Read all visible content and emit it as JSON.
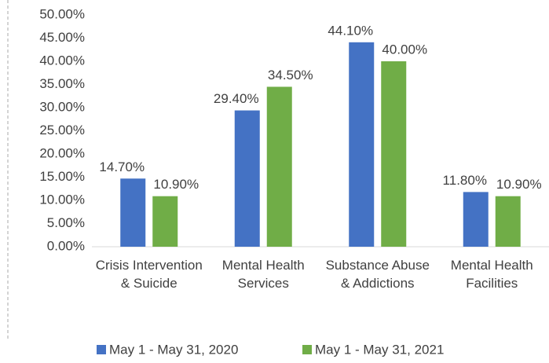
{
  "chart_data": {
    "type": "bar",
    "categories": [
      "Crisis Intervention & Suicide",
      "Mental Health Services",
      "Substance Abuse & Addictions",
      "Mental Health Facilities"
    ],
    "series": [
      {
        "name": "May 1 - May 31, 2020",
        "color": "#4472c4",
        "values": [
          14.7,
          29.4,
          44.1,
          11.8
        ],
        "value_labels": [
          "14.70%",
          "29.40%",
          "44.10%",
          "11.80%"
        ]
      },
      {
        "name": "May 1 - May 31, 2021",
        "color": "#70ad47",
        "values": [
          10.9,
          34.5,
          40.0,
          10.9
        ],
        "value_labels": [
          "10.90%",
          "34.50%",
          "40.00%",
          "10.90%"
        ]
      }
    ],
    "ylim": [
      0,
      50
    ],
    "yticks": [
      {
        "value": 0,
        "label": "0.00%"
      },
      {
        "value": 5,
        "label": "5.00%"
      },
      {
        "value": 10,
        "label": "10.00%"
      },
      {
        "value": 15,
        "label": "15.00%"
      },
      {
        "value": 20,
        "label": "20.00%"
      },
      {
        "value": 25,
        "label": "25.00%"
      },
      {
        "value": 30,
        "label": "30.00%"
      },
      {
        "value": 35,
        "label": "35.00%"
      },
      {
        "value": 40,
        "label": "40.00%"
      },
      {
        "value": 45,
        "label": "45.00%"
      },
      {
        "value": 50,
        "label": "50.00%"
      }
    ],
    "grid": false,
    "legend": "bottom"
  }
}
